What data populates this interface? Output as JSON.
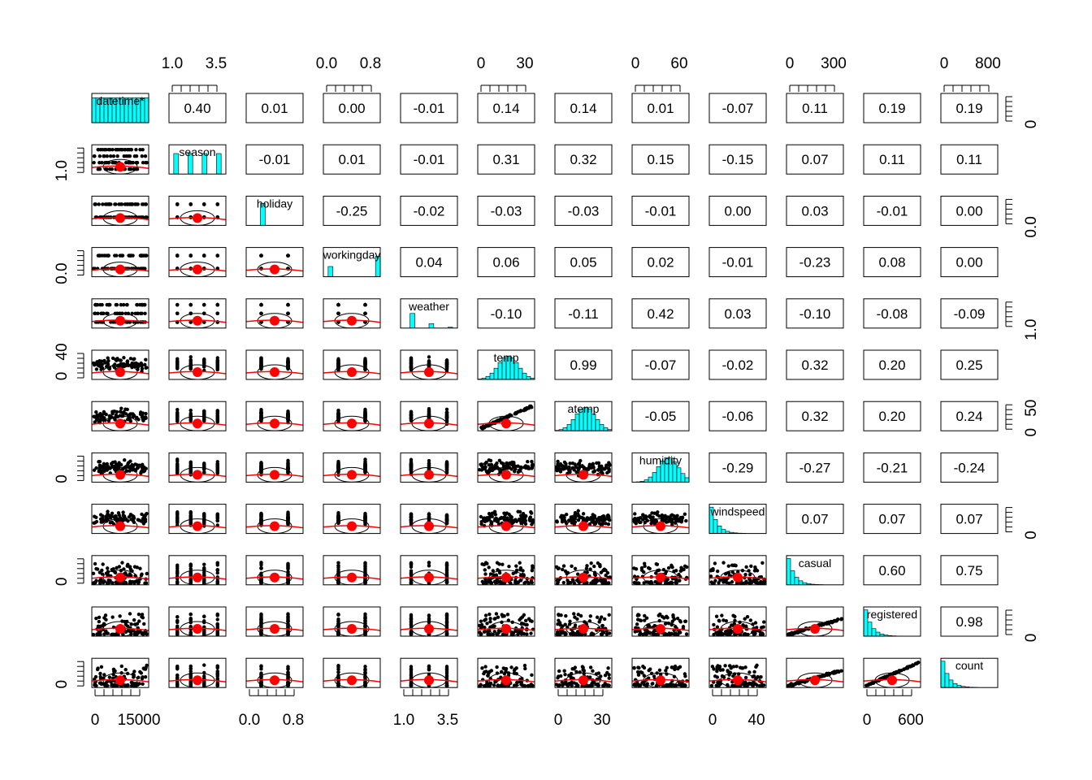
{
  "chart_data": {
    "type": "scatter-matrix",
    "title": "",
    "variables": [
      "datetime*",
      "season",
      "holiday",
      "workingday",
      "weather",
      "temp",
      "atemp",
      "humidity",
      "windspeed",
      "casual",
      "registered",
      "count"
    ],
    "correlations": [
      [
        null,
        "0.40",
        "0.01",
        "0.00",
        "-0.01",
        "0.14",
        "0.14",
        "0.01",
        "-0.07",
        "0.11",
        "0.19",
        "0.19"
      ],
      [
        null,
        null,
        "-0.01",
        "0.01",
        "-0.01",
        "0.31",
        "0.32",
        "0.15",
        "-0.15",
        "0.07",
        "0.11",
        "0.11"
      ],
      [
        null,
        null,
        null,
        "-0.25",
        "-0.02",
        "-0.03",
        "-0.03",
        "-0.01",
        "0.00",
        "0.03",
        "-0.01",
        "0.00"
      ],
      [
        null,
        null,
        null,
        null,
        "0.04",
        "0.06",
        "0.05",
        "0.02",
        "-0.01",
        "-0.23",
        "0.08",
        "0.00"
      ],
      [
        null,
        null,
        null,
        null,
        null,
        "-0.10",
        "-0.11",
        "0.42",
        "0.03",
        "-0.10",
        "-0.08",
        "-0.09"
      ],
      [
        null,
        null,
        null,
        null,
        null,
        null,
        "0.99",
        "-0.07",
        "-0.02",
        "0.32",
        "0.20",
        "0.25"
      ],
      [
        null,
        null,
        null,
        null,
        null,
        null,
        null,
        "-0.05",
        "-0.06",
        "0.32",
        "0.20",
        "0.24"
      ],
      [
        null,
        null,
        null,
        null,
        null,
        null,
        null,
        null,
        "-0.29",
        "-0.27",
        "-0.21",
        "-0.24"
      ],
      [
        null,
        null,
        null,
        null,
        null,
        null,
        null,
        null,
        null,
        "0.07",
        "0.07",
        "0.07"
      ],
      [
        null,
        null,
        null,
        null,
        null,
        null,
        null,
        null,
        null,
        null,
        "0.60",
        "0.75"
      ],
      [
        null,
        null,
        null,
        null,
        null,
        null,
        null,
        null,
        null,
        null,
        null,
        "0.98"
      ],
      [
        null,
        null,
        null,
        null,
        null,
        null,
        null,
        null,
        null,
        null,
        null,
        null
      ]
    ],
    "top_axis": [
      {
        "col": 1,
        "labels": [
          "1.0",
          "3.5"
        ]
      },
      {
        "col": 3,
        "labels": [
          "0.0",
          "0.8"
        ]
      },
      {
        "col": 5,
        "labels": [
          "0",
          "30"
        ]
      },
      {
        "col": 7,
        "labels": [
          "0",
          "60"
        ]
      },
      {
        "col": 9,
        "labels": [
          "0",
          "300"
        ]
      },
      {
        "col": 11,
        "labels": [
          "0",
          "800"
        ]
      }
    ],
    "bottom_axis": [
      {
        "col": 0,
        "labels": [
          "0",
          "15000"
        ]
      },
      {
        "col": 2,
        "labels": [
          "0.0",
          "0.8"
        ]
      },
      {
        "col": 4,
        "labels": [
          "1.0",
          "3.5"
        ]
      },
      {
        "col": 6,
        "labels": [
          "0",
          "30"
        ]
      },
      {
        "col": 8,
        "labels": [
          "0",
          "40"
        ]
      },
      {
        "col": 10,
        "labels": [
          "0",
          "600"
        ]
      }
    ],
    "left_axis": [
      {
        "row": 1,
        "labels": [
          "1.0"
        ]
      },
      {
        "row": 3,
        "labels": [
          "0.0"
        ]
      },
      {
        "row": 5,
        "labels": [
          "0",
          "40"
        ]
      },
      {
        "row": 7,
        "labels": [
          "0"
        ]
      },
      {
        "row": 9,
        "labels": [
          "0"
        ]
      },
      {
        "row": 11,
        "labels": [
          "0"
        ]
      }
    ],
    "right_axis": [
      {
        "row": 0,
        "labels": [
          "0"
        ]
      },
      {
        "row": 2,
        "labels": [
          "0.0"
        ]
      },
      {
        "row": 4,
        "labels": [
          "1.0"
        ]
      },
      {
        "row": 6,
        "labels": [
          "0",
          "50"
        ]
      },
      {
        "row": 8,
        "labels": [
          "0"
        ]
      },
      {
        "row": 10,
        "labels": [
          "0"
        ]
      }
    ],
    "colors": {
      "histogram": "#00ffff",
      "point": "#000000",
      "smooth": "#ff0000",
      "centroid": "#ff0000"
    },
    "grid": false
  }
}
